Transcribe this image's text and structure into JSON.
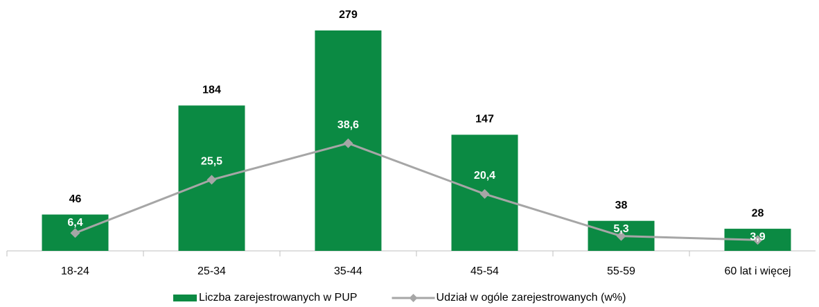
{
  "chart_data": {
    "type": "bar",
    "categories": [
      "18-24",
      "25-34",
      "35-44",
      "45-54",
      "55-59",
      "60 lat i więcej"
    ],
    "series": [
      {
        "name": "Liczba zarejestrowanych w PUP",
        "type": "bar",
        "color": "#0b8a43",
        "values": [
          46,
          184,
          279,
          147,
          38,
          28
        ]
      },
      {
        "name": "Udział w ogóle zarejestrowanych (w%)",
        "type": "line",
        "axis": "y2",
        "color": "#a6a6a6",
        "values": [
          6.4,
          25.5,
          38.6,
          20.4,
          5.3,
          3.9
        ],
        "value_labels": [
          "6,4",
          "25,5",
          "38,6",
          "20,4",
          "5,3",
          "3,9"
        ]
      }
    ],
    "ylim": [
      0,
      300
    ],
    "y2lim": [
      0,
      85
    ],
    "legend": "bottom"
  }
}
